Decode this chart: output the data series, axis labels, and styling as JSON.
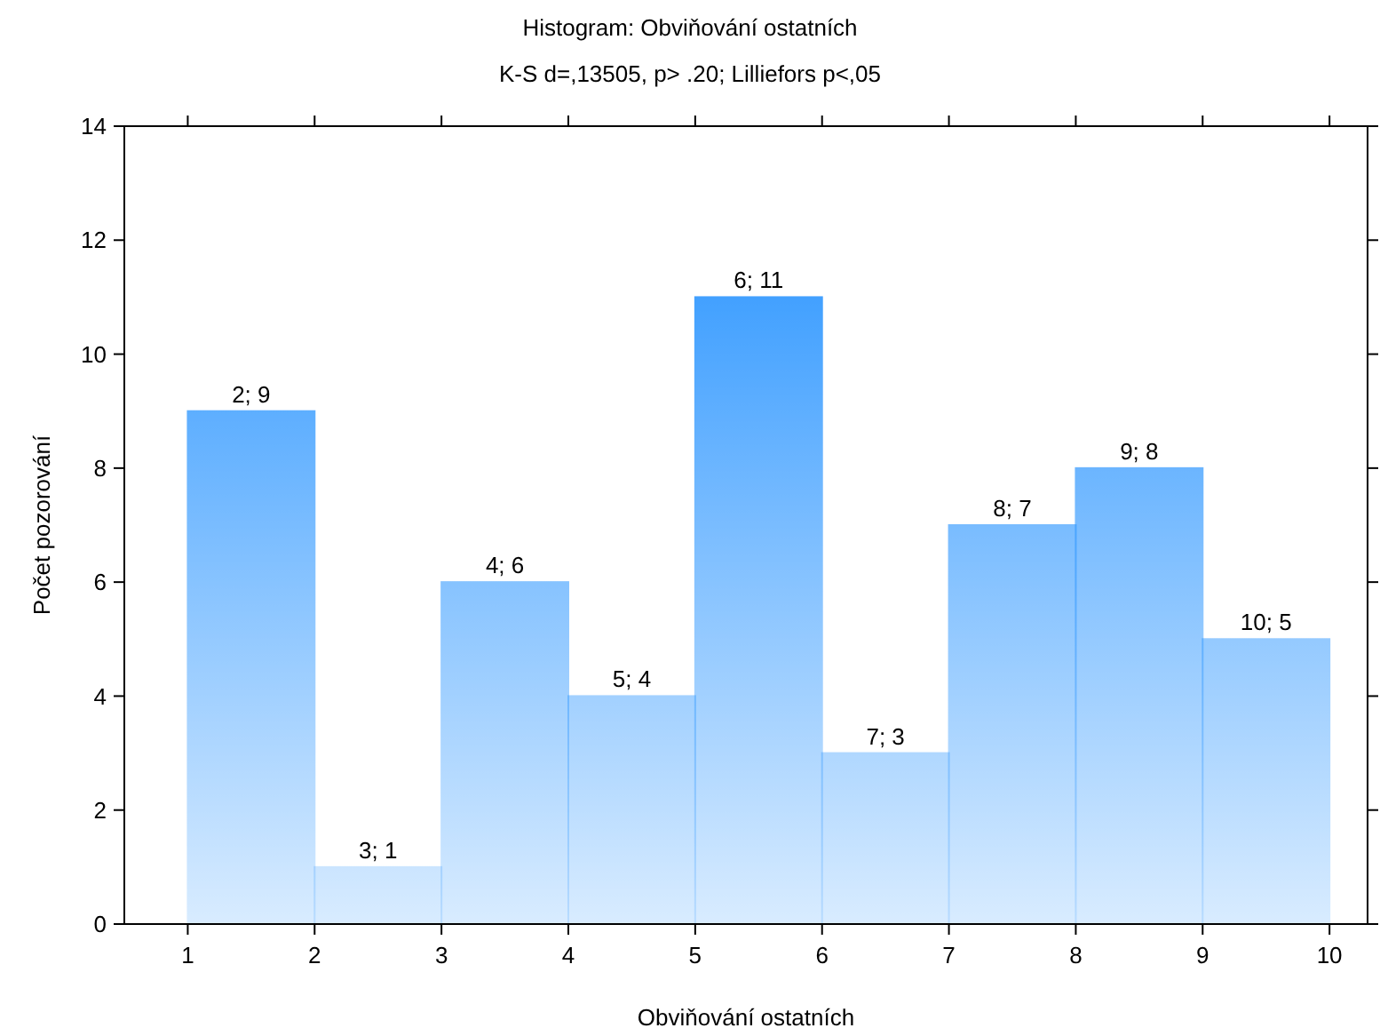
{
  "chart_data": {
    "type": "histogram",
    "title": "Histogram: Obviňování ostatních",
    "subtitle": "K-S d=,13505, p> .20; Lilliefors p<,05",
    "xlabel": "Obviňování ostatních",
    "ylabel": "Počet pozorování",
    "bins": [
      1,
      2,
      3,
      4,
      5,
      6,
      7,
      8,
      9,
      10
    ],
    "values": [
      9,
      1,
      6,
      4,
      11,
      3,
      7,
      8,
      5
    ],
    "annotations": [
      {
        "text": "2; 9",
        "x": 1.5,
        "y": 9
      },
      {
        "text": "3; 1",
        "x": 2.5,
        "y": 1
      },
      {
        "text": "4; 6",
        "x": 3.5,
        "y": 6
      },
      {
        "text": "5; 4",
        "x": 4.5,
        "y": 4
      },
      {
        "text": "6; 11",
        "x": 5.5,
        "y": 11
      },
      {
        "text": "7; 3",
        "x": 6.5,
        "y": 3
      },
      {
        "text": "8; 7",
        "x": 7.5,
        "y": 7
      },
      {
        "text": "9; 8",
        "x": 8.5,
        "y": 8
      },
      {
        "text": "10; 5",
        "x": 9.5,
        "y": 5
      }
    ],
    "color": "#3399ff",
    "xlim": [
      0.5,
      10.3
    ],
    "xticks": [
      1,
      2,
      3,
      4,
      5,
      6,
      7,
      8,
      9,
      10
    ],
    "ylim": [
      0,
      14
    ],
    "yticks": [
      0,
      2,
      4,
      6,
      8,
      10,
      12,
      14
    ]
  }
}
